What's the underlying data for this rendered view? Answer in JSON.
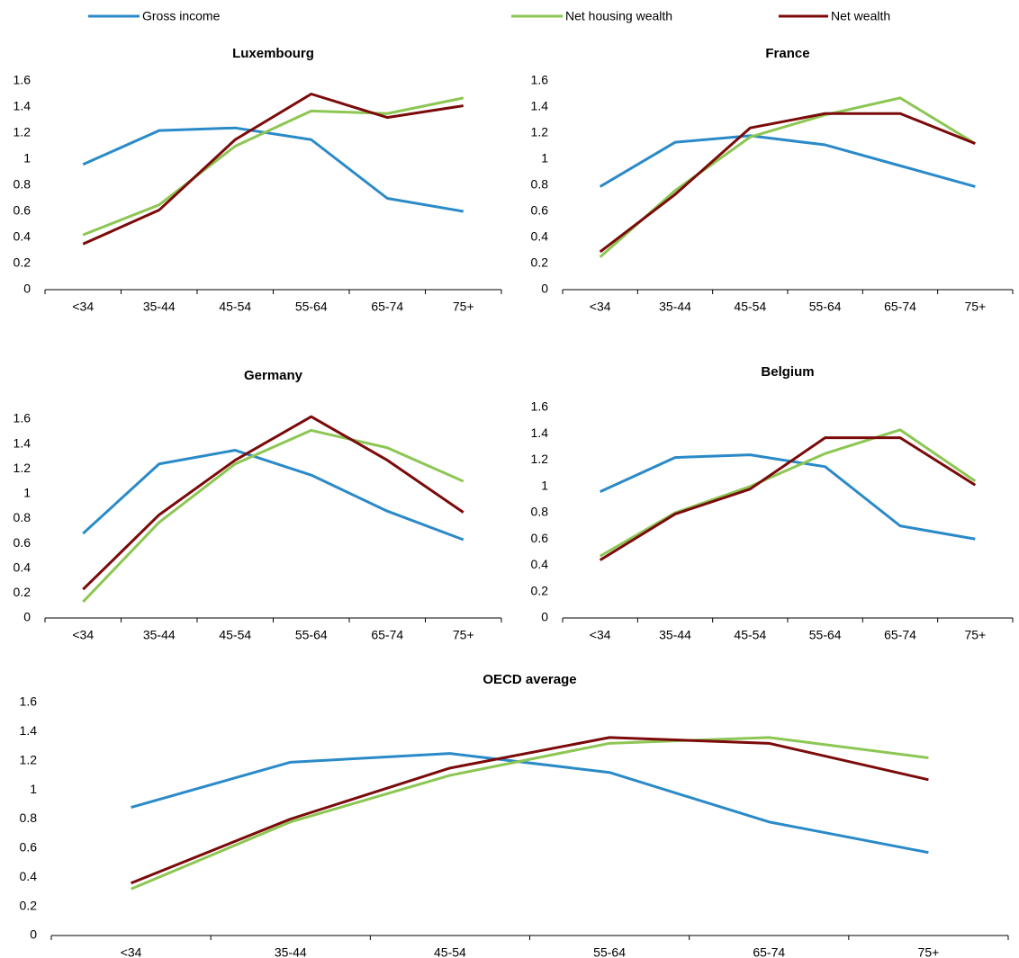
{
  "chart_data": [
    {
      "type": "line",
      "title": "Luxembourg",
      "categories": [
        "<34",
        "35-44",
        "45-54",
        "55-64",
        "65-74",
        "75+"
      ],
      "ylim": [
        0,
        1.6
      ],
      "yticks": [
        0,
        0.2,
        0.4,
        0.6,
        0.8,
        1,
        1.2,
        1.4,
        1.6
      ],
      "series": [
        {
          "name": "Gross income",
          "color": "#2a8ac8",
          "values": [
            0.96,
            1.22,
            1.24,
            1.15,
            0.7,
            0.6
          ]
        },
        {
          "name": "Net housing wealth",
          "color": "#8cc653",
          "values": [
            0.42,
            0.65,
            1.1,
            1.37,
            1.35,
            1.47
          ]
        },
        {
          "name": "Net wealth",
          "color": "#7b0a0a",
          "values": [
            0.35,
            0.61,
            1.15,
            1.5,
            1.32,
            1.41
          ]
        }
      ]
    },
    {
      "type": "line",
      "title": "France",
      "categories": [
        "<34",
        "35-44",
        "45-54",
        "55-64",
        "65-74",
        "75+"
      ],
      "ylim": [
        0,
        1.6
      ],
      "yticks": [
        0,
        0.2,
        0.4,
        0.6,
        0.8,
        1,
        1.2,
        1.4,
        1.6
      ],
      "series": [
        {
          "name": "Gross income",
          "color": "#2a8ac8",
          "values": [
            0.79,
            1.13,
            1.18,
            1.11,
            0.95,
            0.79
          ]
        },
        {
          "name": "Net housing wealth",
          "color": "#8cc653",
          "values": [
            0.25,
            0.76,
            1.17,
            1.34,
            1.47,
            1.12
          ]
        },
        {
          "name": "Net wealth",
          "color": "#7b0a0a",
          "values": [
            0.29,
            0.73,
            1.24,
            1.35,
            1.35,
            1.12
          ]
        }
      ]
    },
    {
      "type": "line",
      "title": "Germany",
      "categories": [
        "<34",
        "35-44",
        "45-54",
        "55-64",
        "65-74",
        "75+"
      ],
      "ylim": [
        0,
        1.6
      ],
      "yticks": [
        0,
        0.2,
        0.4,
        0.6,
        0.8,
        1,
        1.2,
        1.4,
        1.6
      ],
      "series": [
        {
          "name": "Gross income",
          "color": "#2a8ac8",
          "values": [
            0.68,
            1.24,
            1.35,
            1.15,
            0.86,
            0.63
          ]
        },
        {
          "name": "Net housing wealth",
          "color": "#8cc653",
          "values": [
            0.13,
            0.77,
            1.24,
            1.51,
            1.37,
            1.1
          ]
        },
        {
          "name": "Net wealth",
          "color": "#7b0a0a",
          "values": [
            0.23,
            0.83,
            1.27,
            1.62,
            1.27,
            0.85
          ]
        }
      ]
    },
    {
      "type": "line",
      "title": "Belgium",
      "categories": [
        "<34",
        "35-44",
        "45-54",
        "55-64",
        "65-74",
        "75+"
      ],
      "ylim": [
        0,
        1.6
      ],
      "yticks": [
        0,
        0.2,
        0.4,
        0.6,
        0.8,
        1,
        1.2,
        1.4,
        1.6
      ],
      "series": [
        {
          "name": "Gross income",
          "color": "#2a8ac8",
          "values": [
            0.96,
            1.22,
            1.24,
            1.15,
            0.7,
            0.6
          ]
        },
        {
          "name": "Net housing wealth",
          "color": "#8cc653",
          "values": [
            0.47,
            0.8,
            1.0,
            1.25,
            1.43,
            1.04
          ]
        },
        {
          "name": "Net wealth",
          "color": "#7b0a0a",
          "values": [
            0.44,
            0.79,
            0.98,
            1.37,
            1.37,
            1.01
          ]
        }
      ]
    },
    {
      "type": "line",
      "title": "OECD average",
      "categories": [
        "<34",
        "35-44",
        "45-54",
        "55-64",
        "65-74",
        "75+"
      ],
      "ylim": [
        0,
        1.6
      ],
      "yticks": [
        0,
        0.2,
        0.4,
        0.6,
        0.8,
        1,
        1.2,
        1.4,
        1.6
      ],
      "series": [
        {
          "name": "Gross income",
          "color": "#2a8ac8",
          "values": [
            0.88,
            1.19,
            1.25,
            1.12,
            0.78,
            0.57
          ]
        },
        {
          "name": "Net housing wealth",
          "color": "#8cc653",
          "values": [
            0.32,
            0.78,
            1.1,
            1.32,
            1.36,
            1.22
          ]
        },
        {
          "name": "Net wealth",
          "color": "#7b0a0a",
          "values": [
            0.36,
            0.8,
            1.15,
            1.36,
            1.32,
            1.07
          ]
        }
      ]
    }
  ]
}
